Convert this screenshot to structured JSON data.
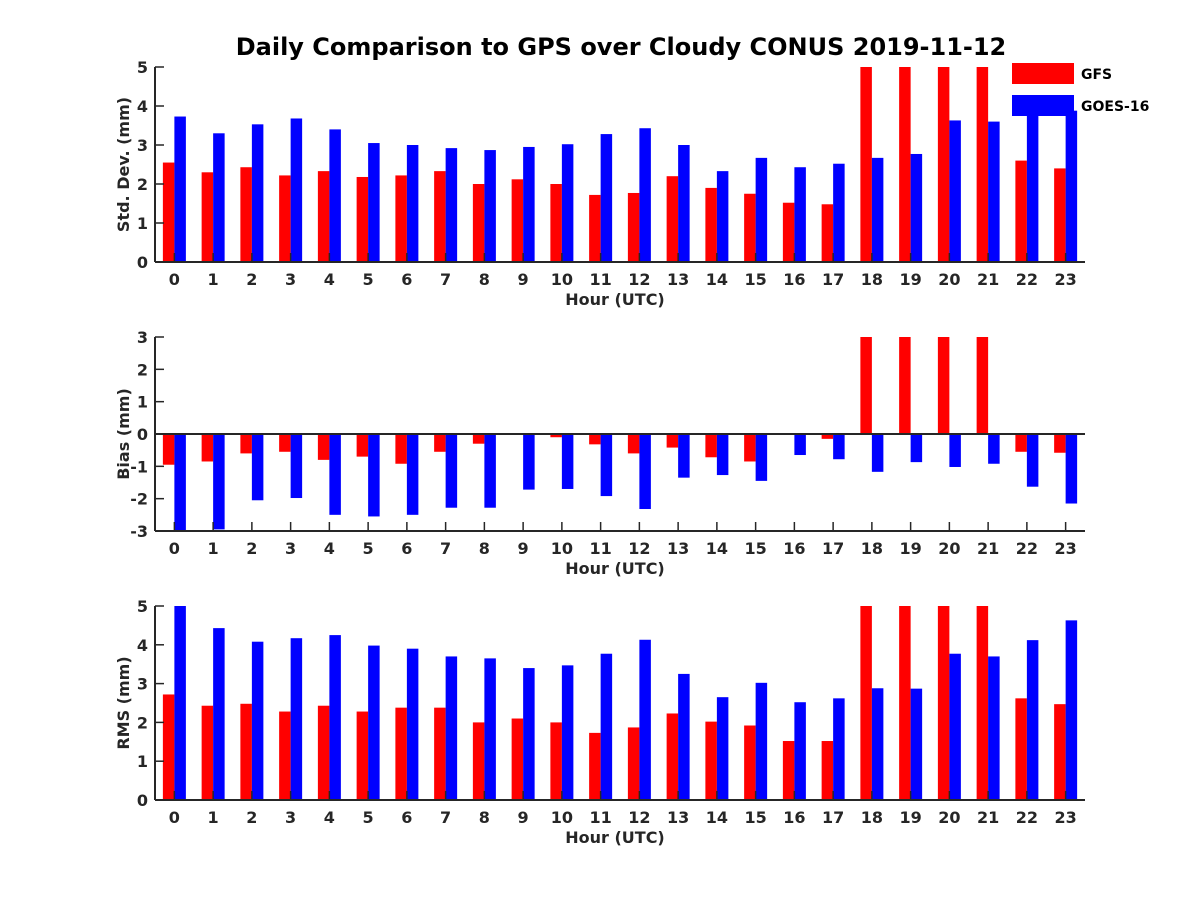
{
  "title": "Daily Comparison to GPS over Cloudy CONUS 2019-11-12",
  "colors": {
    "GFS": "#ff0000",
    "GOES-16": "#0000ff",
    "axis": "#262626"
  },
  "legend": {
    "placement": "top-right",
    "entries": [
      "GFS",
      "GOES-16"
    ]
  },
  "chart_data": [
    {
      "type": "bar",
      "ylabel": "Std. Dev. (mm)",
      "xlabel": "Hour (UTC)",
      "ylim": [
        0,
        5
      ],
      "yticks": [
        0,
        1,
        2,
        3,
        4,
        5
      ],
      "grid": false,
      "categories": [
        "0",
        "1",
        "2",
        "3",
        "4",
        "5",
        "6",
        "7",
        "8",
        "9",
        "10",
        "11",
        "12",
        "13",
        "14",
        "15",
        "16",
        "17",
        "18",
        "19",
        "20",
        "21",
        "22",
        "23"
      ],
      "series": [
        {
          "name": "GFS",
          "values": [
            2.55,
            2.3,
            2.43,
            2.22,
            2.33,
            2.18,
            2.22,
            2.33,
            2.0,
            2.12,
            2.0,
            1.72,
            1.77,
            2.2,
            1.9,
            1.75,
            1.52,
            1.48,
            5.0,
            5.0,
            5.0,
            5.0,
            2.6,
            2.4
          ]
        },
        {
          "name": "GOES-16",
          "values": [
            3.73,
            3.3,
            3.53,
            3.68,
            3.4,
            3.05,
            3.0,
            2.92,
            2.87,
            2.95,
            3.02,
            3.28,
            3.43,
            3.0,
            2.33,
            2.67,
            2.43,
            2.52,
            2.67,
            2.77,
            3.63,
            3.6,
            3.78,
            3.88
          ]
        }
      ]
    },
    {
      "type": "bar",
      "ylabel": "Bias (mm)",
      "xlabel": "Hour (UTC)",
      "ylim": [
        -3,
        3
      ],
      "yticks": [
        -3,
        -2,
        -1,
        0,
        1,
        2,
        3
      ],
      "zero_line": true,
      "grid": false,
      "categories": [
        "0",
        "1",
        "2",
        "3",
        "4",
        "5",
        "6",
        "7",
        "8",
        "9",
        "10",
        "11",
        "12",
        "13",
        "14",
        "15",
        "16",
        "17",
        "18",
        "19",
        "20",
        "21",
        "22",
        "23"
      ],
      "series": [
        {
          "name": "GFS",
          "values": [
            -0.95,
            -0.85,
            -0.6,
            -0.55,
            -0.8,
            -0.7,
            -0.92,
            -0.55,
            -0.3,
            0.0,
            -0.1,
            -0.32,
            -0.6,
            -0.42,
            -0.72,
            -0.85,
            -0.02,
            -0.15,
            3.0,
            3.0,
            3.0,
            3.0,
            -0.55,
            -0.58
          ]
        },
        {
          "name": "GOES-16",
          "values": [
            -3.0,
            -2.95,
            -2.05,
            -1.98,
            -2.5,
            -2.55,
            -2.5,
            -2.28,
            -2.28,
            -1.72,
            -1.7,
            -1.92,
            -2.32,
            -1.35,
            -1.27,
            -1.45,
            -0.65,
            -0.78,
            -1.17,
            -0.87,
            -1.02,
            -0.92,
            -1.63,
            -2.15
          ]
        }
      ]
    },
    {
      "type": "bar",
      "ylabel": "RMS (mm)",
      "xlabel": "Hour (UTC)",
      "ylim": [
        0,
        5
      ],
      "yticks": [
        0,
        1,
        2,
        3,
        4,
        5
      ],
      "grid": false,
      "categories": [
        "0",
        "1",
        "2",
        "3",
        "4",
        "5",
        "6",
        "7",
        "8",
        "9",
        "10",
        "11",
        "12",
        "13",
        "14",
        "15",
        "16",
        "17",
        "18",
        "19",
        "20",
        "21",
        "22",
        "23"
      ],
      "series": [
        {
          "name": "GFS",
          "values": [
            2.72,
            2.43,
            2.48,
            2.28,
            2.43,
            2.28,
            2.38,
            2.38,
            2.0,
            2.1,
            2.0,
            1.73,
            1.87,
            2.23,
            2.02,
            1.92,
            1.52,
            1.52,
            5.0,
            5.0,
            5.0,
            5.0,
            2.62,
            2.47
          ]
        },
        {
          "name": "GOES-16",
          "values": [
            5.0,
            4.43,
            4.08,
            4.17,
            4.25,
            3.98,
            3.9,
            3.7,
            3.65,
            3.4,
            3.47,
            3.77,
            4.13,
            3.25,
            2.65,
            3.02,
            2.52,
            2.62,
            2.88,
            2.87,
            3.77,
            3.7,
            4.12,
            4.63
          ]
        }
      ]
    }
  ]
}
